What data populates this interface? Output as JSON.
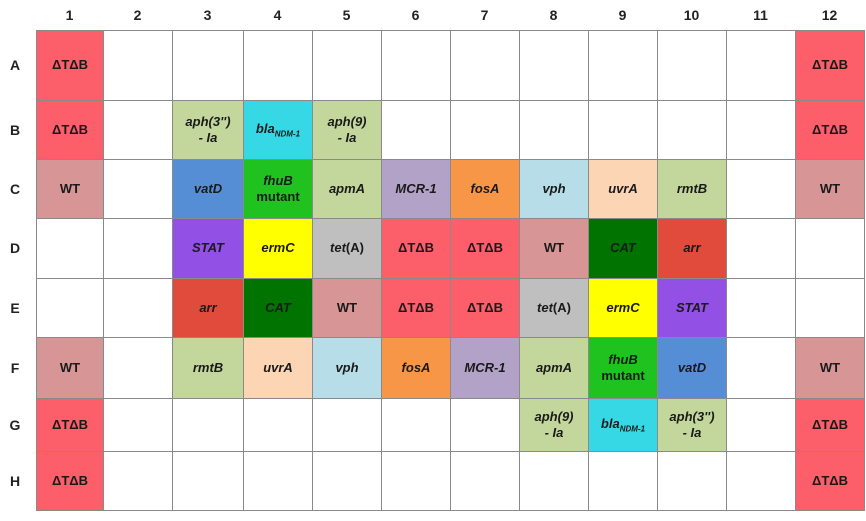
{
  "columns": [
    "1",
    "2",
    "3",
    "4",
    "5",
    "6",
    "7",
    "8",
    "9",
    "10",
    "11",
    "12"
  ],
  "rows": [
    "A",
    "B",
    "C",
    "D",
    "E",
    "F",
    "G",
    "H"
  ],
  "colors": {
    "dtdb": "#fc5e6a",
    "wt": "#d79595",
    "empty": "#ffffff",
    "aph": "#c3d69b",
    "bla": "#35d8e4",
    "vatD": "#558ed5",
    "fhuB": "#1fc21f",
    "apmA": "#c3d69b",
    "mcr1": "#b3a2c7",
    "fosA": "#f79646",
    "vph": "#b7dde8",
    "uvrA": "#fcd5b5",
    "rmtB": "#c3d69b",
    "stat": "#9350e4",
    "ermC": "#ffff00",
    "tetA": "#bfbfbf",
    "cat": "#007300",
    "arr": "#e04b3b"
  },
  "plate": [
    [
      {
        "text": "ΔTΔB",
        "style": "dtdb"
      },
      {
        "style": "empty"
      },
      {
        "style": "empty"
      },
      {
        "style": "empty"
      },
      {
        "style": "empty"
      },
      {
        "style": "empty"
      },
      {
        "style": "empty"
      },
      {
        "style": "empty"
      },
      {
        "style": "empty"
      },
      {
        "style": "empty"
      },
      {
        "style": "empty"
      },
      {
        "text": "ΔTΔB",
        "style": "dtdb"
      }
    ],
    [
      {
        "text": "ΔTΔB",
        "style": "dtdb"
      },
      {
        "style": "empty"
      },
      {
        "text": "aph(3'')",
        "text2": "- Ia",
        "style": "aph",
        "italic": true
      },
      {
        "text": "bla",
        "sub": "NDM-1",
        "style": "bla",
        "italic": true
      },
      {
        "text": "aph(9)",
        "text2": "- Ia",
        "style": "aph",
        "italic": true
      },
      {
        "style": "empty"
      },
      {
        "style": "empty"
      },
      {
        "style": "empty"
      },
      {
        "style": "empty"
      },
      {
        "style": "empty"
      },
      {
        "style": "empty"
      },
      {
        "text": "ΔTΔB",
        "style": "dtdb"
      }
    ],
    [
      {
        "text": "WT",
        "style": "wt"
      },
      {
        "style": "empty"
      },
      {
        "text": "vatD",
        "style": "vatD",
        "italic": true
      },
      {
        "text": "fhuB",
        "text2": "mutant",
        "style": "fhuB",
        "italic": true
      },
      {
        "text": "apmA",
        "style": "apmA",
        "italic": true
      },
      {
        "text": "MCR-1",
        "style": "mcr1",
        "italic": true
      },
      {
        "text": "fosA",
        "style": "fosA",
        "italic": true
      },
      {
        "text": "vph",
        "style": "vph",
        "italic": true
      },
      {
        "text": "uvrA",
        "style": "uvrA",
        "italic": true
      },
      {
        "text": "rmtB",
        "style": "rmtB",
        "italic": true
      },
      {
        "style": "empty"
      },
      {
        "text": "WT",
        "style": "wt"
      }
    ],
    [
      {
        "style": "empty"
      },
      {
        "style": "empty"
      },
      {
        "text": "STAT",
        "style": "stat",
        "italic": true
      },
      {
        "text": "ermC",
        "style": "ermC",
        "italic": true
      },
      {
        "text": "tet",
        "tail": "(A)",
        "style": "tetA",
        "italic": true
      },
      {
        "text": "ΔTΔB",
        "style": "dtdb"
      },
      {
        "text": "ΔTΔB",
        "style": "dtdb"
      },
      {
        "text": "WT",
        "style": "wt"
      },
      {
        "text": "CAT",
        "style": "cat",
        "italic": true
      },
      {
        "text": "arr",
        "style": "arr",
        "italic": true
      },
      {
        "style": "empty"
      },
      {
        "style": "empty"
      }
    ],
    [
      {
        "style": "empty"
      },
      {
        "style": "empty"
      },
      {
        "text": "arr",
        "style": "arr",
        "italic": true
      },
      {
        "text": "CAT",
        "style": "cat",
        "italic": true
      },
      {
        "text": "WT",
        "style": "wt"
      },
      {
        "text": "ΔTΔB",
        "style": "dtdb"
      },
      {
        "text": "ΔTΔB",
        "style": "dtdb"
      },
      {
        "text": "tet",
        "tail": "(A)",
        "style": "tetA",
        "italic": true
      },
      {
        "text": "ermC",
        "style": "ermC",
        "italic": true
      },
      {
        "text": "STAT",
        "style": "stat",
        "italic": true
      },
      {
        "style": "empty"
      },
      {
        "style": "empty"
      }
    ],
    [
      {
        "text": "WT",
        "style": "wt"
      },
      {
        "style": "empty"
      },
      {
        "text": "rmtB",
        "style": "rmtB",
        "italic": true
      },
      {
        "text": "uvrA",
        "style": "uvrA",
        "italic": true
      },
      {
        "text": "vph",
        "style": "vph",
        "italic": true
      },
      {
        "text": "fosA",
        "style": "fosA",
        "italic": true
      },
      {
        "text": "MCR-1",
        "style": "mcr1",
        "italic": true
      },
      {
        "text": "apmA",
        "style": "apmA",
        "italic": true
      },
      {
        "text": "fhuB",
        "text2": "mutant",
        "style": "fhuB",
        "italic": true
      },
      {
        "text": "vatD",
        "style": "vatD",
        "italic": true
      },
      {
        "style": "empty"
      },
      {
        "text": "WT",
        "style": "wt"
      }
    ],
    [
      {
        "text": "ΔTΔB",
        "style": "dtdb"
      },
      {
        "style": "empty"
      },
      {
        "style": "empty"
      },
      {
        "style": "empty"
      },
      {
        "style": "empty"
      },
      {
        "style": "empty"
      },
      {
        "style": "empty"
      },
      {
        "text": "aph(9)",
        "text2": "- Ia",
        "style": "aph",
        "italic": true
      },
      {
        "text": "bla",
        "sub": "NDM-1",
        "style": "bla",
        "italic": true
      },
      {
        "text": "aph(3'')",
        "text2": "- Ia",
        "style": "aph",
        "italic": true
      },
      {
        "style": "empty"
      },
      {
        "text": "ΔTΔB",
        "style": "dtdb"
      }
    ],
    [
      {
        "text": "ΔTΔB",
        "style": "dtdb"
      },
      {
        "style": "empty"
      },
      {
        "style": "empty"
      },
      {
        "style": "empty"
      },
      {
        "style": "empty"
      },
      {
        "style": "empty"
      },
      {
        "style": "empty"
      },
      {
        "style": "empty"
      },
      {
        "style": "empty"
      },
      {
        "style": "empty"
      },
      {
        "style": "empty"
      },
      {
        "text": "ΔTΔB",
        "style": "dtdb"
      }
    ]
  ]
}
